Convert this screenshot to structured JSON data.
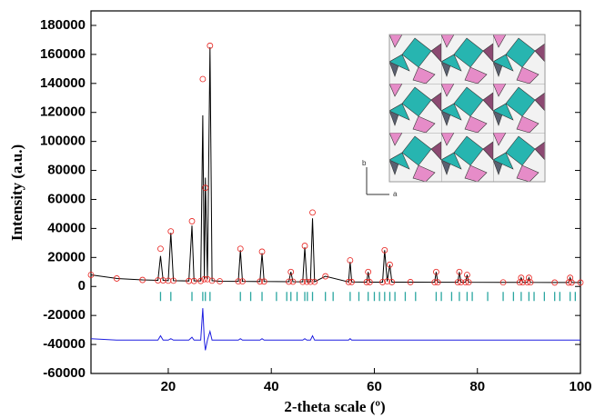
{
  "chart_data": {
    "type": "line",
    "x_label": "2-theta scale (º)",
    "y_label": "Intensity (a.u.)",
    "xlim": [
      5,
      100
    ],
    "xticks": [
      20,
      40,
      60,
      80,
      100
    ],
    "ylim": [
      -60000,
      190000
    ],
    "yticks": [
      -60000,
      -40000,
      -20000,
      0,
      20000,
      40000,
      60000,
      80000,
      100000,
      120000,
      140000,
      160000,
      180000
    ],
    "x": [
      5,
      10,
      15,
      18,
      18.5,
      19,
      20,
      20.5,
      21,
      24,
      24.6,
      25,
      26.3,
      26.7,
      27,
      27.2,
      27.6,
      28.1,
      28.5,
      30,
      33.6,
      34,
      34.4,
      37.8,
      38.2,
      38.6,
      43.4,
      43.8,
      44.2,
      46.1,
      46.5,
      46.9,
      47.6,
      48,
      48.4,
      50.5,
      55,
      55.3,
      55.6,
      58.5,
      58.8,
      59.1,
      61.6,
      62,
      62.5,
      63,
      63.4,
      67,
      71.7,
      72,
      72.3,
      76.2,
      76.5,
      76.8,
      77.7,
      78,
      78.3,
      85,
      88.2,
      88.5,
      88.8,
      89.7,
      90,
      90.3,
      95,
      97.7,
      98,
      98.3,
      100
    ],
    "series": [
      {
        "style": "circles",
        "color": "#e8231f",
        "values": [
          8000,
          5500,
          4500,
          4200,
          26000,
          4200,
          4000,
          38000,
          4000,
          3800,
          45000,
          3800,
          3800,
          143000,
          5000,
          68000,
          5000,
          166000,
          4000,
          3600,
          3500,
          26000,
          3500,
          3400,
          24000,
          3400,
          3300,
          10000,
          3300,
          3200,
          28000,
          3200,
          3200,
          51000,
          3200,
          7000,
          3100,
          18000,
          3100,
          3000,
          10000,
          3000,
          3000,
          25000,
          3500,
          15000,
          3000,
          3000,
          2900,
          10000,
          2900,
          2900,
          10000,
          2900,
          2900,
          8000,
          2900,
          2800,
          2800,
          6000,
          2800,
          2800,
          6000,
          2800,
          2700,
          2700,
          6000,
          2700,
          2700
        ]
      },
      {
        "style": "line",
        "color": "#000000",
        "values": [
          8000,
          5500,
          4500,
          4200,
          21000,
          4200,
          4000,
          37000,
          4000,
          3800,
          42000,
          3800,
          3800,
          118000,
          5000,
          75000,
          5000,
          165000,
          4000,
          3600,
          3500,
          25000,
          3500,
          3400,
          23000,
          3400,
          3300,
          10000,
          3300,
          3200,
          27000,
          3200,
          3200,
          47000,
          3200,
          7000,
          3100,
          17000,
          3100,
          3000,
          10000,
          3000,
          3000,
          25000,
          3500,
          15000,
          3000,
          3000,
          2900,
          10000,
          2900,
          2900,
          10000,
          2900,
          2900,
          8000,
          2900,
          2800,
          2800,
          6000,
          2800,
          2800,
          6000,
          2800,
          2700,
          2700,
          6000,
          2700,
          2700
        ]
      },
      {
        "style": "line",
        "color": "#1f1fe0",
        "values": [
          -36000,
          -37000,
          -37000,
          -37000,
          -34000,
          -37000,
          -37000,
          -36000,
          -37000,
          -37000,
          -35000,
          -37000,
          -37000,
          -15000,
          -37000,
          -44000,
          -37000,
          -31000,
          -37000,
          -37000,
          -37000,
          -36000,
          -37000,
          -37000,
          -36000,
          -37000,
          -37000,
          -37000,
          -37000,
          -37000,
          -36000,
          -37000,
          -37000,
          -34000,
          -37000,
          -37000,
          -37000,
          -36000,
          -37000,
          -37000,
          -37000,
          -37000,
          -37000,
          -37000,
          -37000,
          -37000,
          -37000,
          -37000,
          -37000,
          -37000,
          -37000,
          -37000,
          -37000,
          -37000,
          -37000,
          -37000,
          -37000,
          -37000,
          -37000,
          -37000,
          -37000,
          -37000,
          -37000,
          -37000,
          -37000,
          -37000,
          -37000,
          -37000,
          -37000
        ]
      }
    ],
    "bragg_ticks": {
      "color": "#2aa6a0",
      "x": [
        18.5,
        20.5,
        24.6,
        26.7,
        27.2,
        28.1,
        34,
        36,
        38.2,
        41,
        43,
        43.8,
        45,
        46.5,
        47,
        48,
        50.5,
        52,
        55.3,
        57,
        58.8,
        60,
        61,
        62,
        63,
        64,
        66,
        68,
        72,
        73,
        75,
        76.5,
        78,
        79,
        82,
        85,
        87,
        88.5,
        90,
        91,
        93,
        95,
        96,
        98,
        99
      ]
    },
    "inset_axis_labels": [
      "b",
      "a"
    ]
  }
}
